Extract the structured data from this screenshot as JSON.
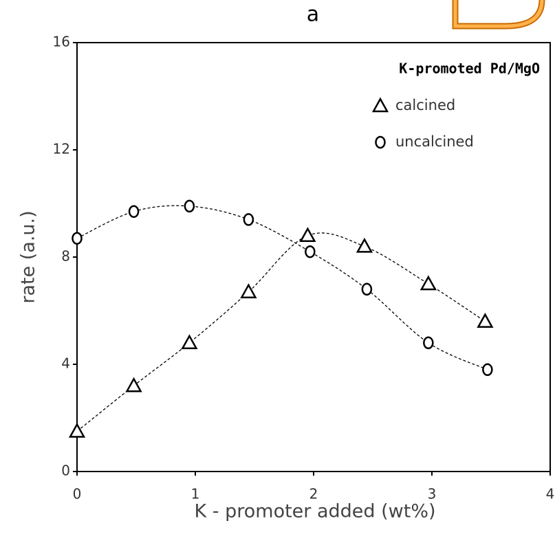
{
  "chart_data": {
    "type": "scatter",
    "title": "a",
    "xlabel": "K - promoter added (wt%)",
    "ylabel": "rate  (a.u.)",
    "legend_title": "K-promoted Pd/MgO",
    "legend": "upper right",
    "xlim": [
      0,
      4
    ],
    "xticks": [
      0,
      1,
      2,
      3,
      4
    ],
    "ylim": [
      0,
      16
    ],
    "yticks": [
      0,
      4,
      8,
      12,
      16
    ],
    "trend_lines": true,
    "series": [
      {
        "name": "calcined",
        "color": "#000000",
        "marker": "triangle",
        "x": [
          0,
          0.48,
          0.95,
          1.45,
          1.95,
          2.43,
          2.97,
          3.45
        ],
        "values": [
          1.5,
          3.2,
          4.8,
          6.7,
          8.8,
          8.4,
          7.0,
          5.6
        ]
      },
      {
        "name": "uncalcined",
        "color": "#000000",
        "marker": "circle",
        "x": [
          0,
          0.48,
          0.95,
          1.45,
          1.97,
          2.45,
          2.97,
          3.47
        ],
        "values": [
          8.7,
          9.7,
          9.9,
          9.4,
          8.2,
          6.8,
          4.8,
          3.8
        ]
      }
    ]
  }
}
